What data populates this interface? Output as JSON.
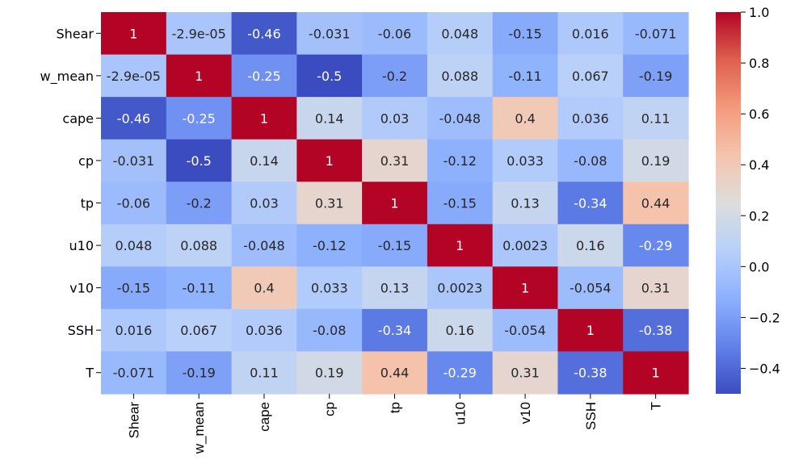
{
  "chart_data": {
    "type": "heatmap",
    "title": "",
    "xlabel": "",
    "ylabel": "",
    "colormap": "coolwarm",
    "labels": [
      "Shear",
      "w_mean",
      "cape",
      "cp",
      "tp",
      "u10",
      "v10",
      "SSH",
      "T"
    ],
    "annotations": [
      [
        "1",
        "-2.9e-05",
        "-0.46",
        "-0.031",
        "-0.06",
        "0.048",
        "-0.15",
        "0.016",
        "-0.071"
      ],
      [
        "-2.9e-05",
        "1",
        "-0.25",
        "-0.5",
        "-0.2",
        "0.088",
        "-0.11",
        "0.067",
        "-0.19"
      ],
      [
        "-0.46",
        "-0.25",
        "1",
        "0.14",
        "0.03",
        "-0.048",
        "0.4",
        "0.036",
        "0.11"
      ],
      [
        "-0.031",
        "-0.5",
        "0.14",
        "1",
        "0.31",
        "-0.12",
        "0.033",
        "-0.08",
        "0.19"
      ],
      [
        "-0.06",
        "-0.2",
        "0.03",
        "0.31",
        "1",
        "-0.15",
        "0.13",
        "-0.34",
        "0.44"
      ],
      [
        "0.048",
        "0.088",
        "-0.048",
        "-0.12",
        "-0.15",
        "1",
        "0.0023",
        "0.16",
        "-0.29"
      ],
      [
        "-0.15",
        "-0.11",
        "0.4",
        "0.033",
        "0.13",
        "0.0023",
        "1",
        "-0.054",
        "0.31"
      ],
      [
        "0.016",
        "0.067",
        "0.036",
        "-0.08",
        "-0.34",
        "0.16",
        "-0.054",
        "1",
        "-0.38"
      ],
      [
        "-0.071",
        "-0.19",
        "0.11",
        "0.19",
        "0.44",
        "-0.29",
        "0.31",
        "-0.38",
        "1"
      ]
    ],
    "values": [
      [
        1,
        -2.9e-05,
        -0.46,
        -0.031,
        -0.06,
        0.048,
        -0.15,
        0.016,
        -0.071
      ],
      [
        -2.9e-05,
        1,
        -0.25,
        -0.5,
        -0.2,
        0.088,
        -0.11,
        0.067,
        -0.19
      ],
      [
        -0.46,
        -0.25,
        1,
        0.14,
        0.03,
        -0.048,
        0.4,
        0.036,
        0.11
      ],
      [
        -0.031,
        -0.5,
        0.14,
        1,
        0.31,
        -0.12,
        0.033,
        -0.08,
        0.19
      ],
      [
        -0.06,
        -0.2,
        0.03,
        0.31,
        1,
        -0.15,
        0.13,
        -0.34,
        0.44
      ],
      [
        0.048,
        0.088,
        -0.048,
        -0.12,
        -0.15,
        1,
        0.0023,
        0.16,
        -0.29
      ],
      [
        -0.15,
        -0.11,
        0.4,
        0.033,
        0.13,
        0.0023,
        1,
        -0.054,
        0.31
      ],
      [
        0.016,
        0.067,
        0.036,
        -0.08,
        -0.34,
        0.16,
        -0.054,
        1,
        -0.38
      ],
      [
        -0.071,
        -0.19,
        0.11,
        0.19,
        0.44,
        -0.29,
        0.31,
        -0.38,
        1
      ]
    ],
    "vmin": -0.5,
    "vmax": 1.0,
    "colorbar": {
      "ticks": [
        1.0,
        0.8,
        0.6,
        0.4,
        0.2,
        0.0,
        -0.2,
        -0.4
      ],
      "tick_labels": [
        "1.0",
        "0.8",
        "0.6",
        "0.4",
        "0.2",
        "0.0",
        "−0.2",
        "−0.4"
      ]
    },
    "grid": false,
    "legend": "colorbar-right"
  }
}
